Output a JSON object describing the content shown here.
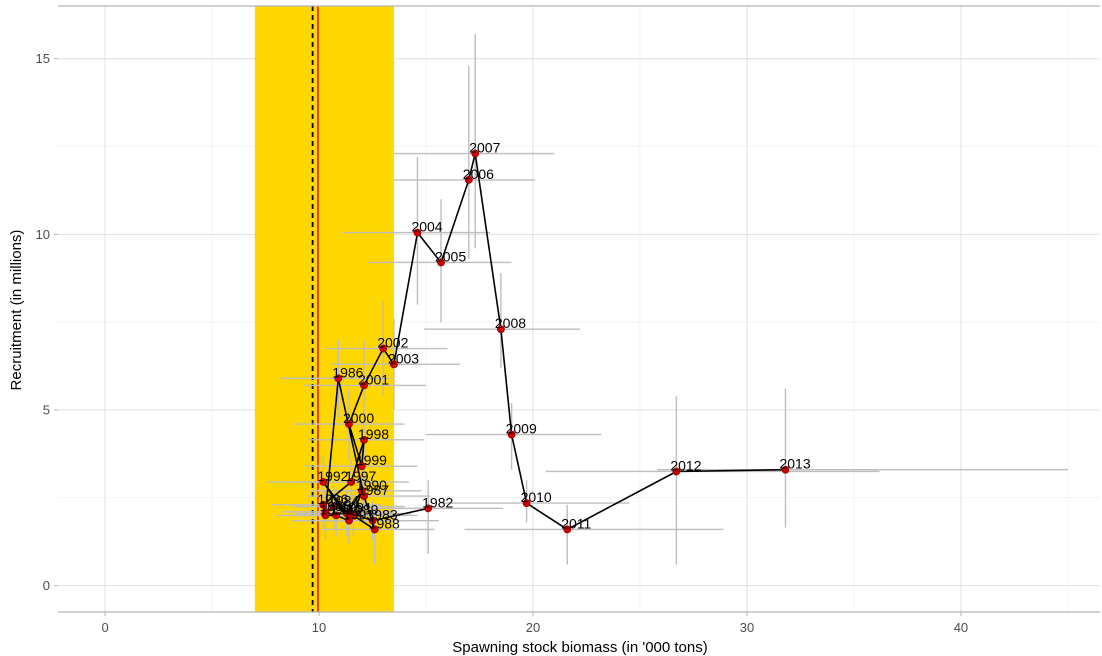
{
  "chart_data": {
    "type": "scatter",
    "xlabel": "Spawning stock biomass (in '000 tons)",
    "ylabel": "Recruitment (in millions)",
    "xlim": [
      -2.2,
      46.5
    ],
    "ylim": [
      -0.75,
      16.5
    ],
    "xticks": [
      0,
      10,
      20,
      30,
      40
    ],
    "xticklabels": [
      "0",
      "10",
      "20",
      "30",
      "40"
    ],
    "yticks": [
      0,
      5,
      10,
      15
    ],
    "yticklabels": [
      "0",
      "5",
      "10",
      "15"
    ],
    "grid": true,
    "legend": "none",
    "colors": {
      "band": "#FFD700",
      "point": "#CC0000",
      "line": "#000000",
      "errorbar": "#BEBEBE",
      "grid": "#E0E0E0",
      "ref_solid": "#E41A1C",
      "ref_dashed": "#000000"
    },
    "band": [
      7.0,
      13.5
    ],
    "ref_dashed_x": 9.7,
    "ref_solid_x": 9.95,
    "points": [
      {
        "year": "1982",
        "x": 15.1,
        "y": 2.2,
        "xerr": [
          11.6,
          18.6
        ],
        "yerr": [
          0.9,
          3.0
        ]
      },
      {
        "year": "1983",
        "x": 12.5,
        "y": 1.85,
        "xerr": [
          10.0,
          15.6
        ],
        "yerr": [
          1.3,
          2.4
        ]
      },
      {
        "year": "1984",
        "x": 10.7,
        "y": 2.25,
        "xerr": [
          8.8,
          14.0
        ],
        "yerr": [
          1.6,
          2.8
        ]
      },
      {
        "year": "1985",
        "x": 10.3,
        "y": 2.1,
        "xerr": [
          8.3,
          13.5
        ],
        "yerr": [
          1.5,
          2.7
        ]
      },
      {
        "year": "1986",
        "x": 10.9,
        "y": 5.9,
        "xerr": [
          8.2,
          13.4
        ],
        "yerr": [
          4.8,
          7.0
        ]
      },
      {
        "year": "1987",
        "x": 12.1,
        "y": 2.55,
        "xerr": [
          9.5,
          15.2
        ],
        "yerr": [
          1.9,
          3.2
        ]
      },
      {
        "year": "1988",
        "x": 12.6,
        "y": 1.6,
        "xerr": [
          10.1,
          15.4
        ],
        "yerr": [
          0.6,
          2.3
        ]
      },
      {
        "year": "1989",
        "x": 11.6,
        "y": 2.0,
        "xerr": [
          9.0,
          14.6
        ],
        "yerr": [
          1.4,
          2.6
        ]
      },
      {
        "year": "1990",
        "x": 12.0,
        "y": 2.7,
        "xerr": [
          9.6,
          14.8
        ],
        "yerr": [
          2.1,
          3.4
        ]
      },
      {
        "year": "1991",
        "x": 11.3,
        "y": 2.05,
        "xerr": [
          8.9,
          14.3
        ],
        "yerr": [
          1.4,
          2.7
        ]
      },
      {
        "year": "1992",
        "x": 10.2,
        "y": 2.95,
        "xerr": [
          7.6,
          12.8
        ],
        "yerr": [
          2.2,
          3.7
        ]
      },
      {
        "year": "1993",
        "x": 11.4,
        "y": 1.85,
        "xerr": [
          8.7,
          14.1
        ],
        "yerr": [
          1.2,
          2.5
        ]
      },
      {
        "year": "1994",
        "x": 10.8,
        "y": 2.0,
        "xerr": [
          8.4,
          13.6
        ],
        "yerr": [
          1.4,
          2.6
        ]
      },
      {
        "year": "1995",
        "x": 10.3,
        "y": 2.0,
        "xerr": [
          8.0,
          13.0
        ],
        "yerr": [
          1.3,
          2.6
        ]
      },
      {
        "year": "1996",
        "x": 10.2,
        "y": 2.3,
        "xerr": [
          7.8,
          12.9
        ],
        "yerr": [
          1.6,
          3.0
        ]
      },
      {
        "year": "1997",
        "x": 11.5,
        "y": 2.95,
        "xerr": [
          8.9,
          14.2
        ],
        "yerr": [
          2.3,
          3.6
        ]
      },
      {
        "year": "1998",
        "x": 12.1,
        "y": 4.15,
        "xerr": [
          9.5,
          14.9
        ],
        "yerr": [
          3.2,
          5.1
        ]
      },
      {
        "year": "1999",
        "x": 12.0,
        "y": 3.4,
        "xerr": [
          9.4,
          14.6
        ],
        "yerr": [
          2.6,
          4.2
        ]
      },
      {
        "year": "2000",
        "x": 11.4,
        "y": 4.6,
        "xerr": [
          8.8,
          14.0
        ],
        "yerr": [
          3.6,
          5.6
        ]
      },
      {
        "year": "2001",
        "x": 12.1,
        "y": 5.7,
        "xerr": [
          9.3,
          15.0
        ],
        "yerr": [
          4.4,
          7.0
        ]
      },
      {
        "year": "2002",
        "x": 13.0,
        "y": 6.75,
        "xerr": [
          10.3,
          16.0
        ],
        "yerr": [
          5.4,
          8.1
        ]
      },
      {
        "year": "2003",
        "x": 13.5,
        "y": 6.3,
        "xerr": [
          10.6,
          16.6
        ],
        "yerr": [
          5.0,
          7.6
        ]
      },
      {
        "year": "2004",
        "x": 14.6,
        "y": 10.05,
        "xerr": [
          11.1,
          18.0
        ],
        "yerr": [
          8.0,
          12.2
        ]
      },
      {
        "year": "2005",
        "x": 15.7,
        "y": 9.2,
        "xerr": [
          12.3,
          19.0
        ],
        "yerr": [
          7.5,
          11.0
        ]
      },
      {
        "year": "2006",
        "x": 17.0,
        "y": 11.55,
        "xerr": [
          13.5,
          20.1
        ],
        "yerr": [
          9.3,
          14.8
        ]
      },
      {
        "year": "2007",
        "x": 17.3,
        "y": 12.3,
        "xerr": [
          13.5,
          21.0
        ],
        "yerr": [
          9.6,
          15.7
        ]
      },
      {
        "year": "2008",
        "x": 18.5,
        "y": 7.3,
        "xerr": [
          14.9,
          22.2
        ],
        "yerr": [
          6.2,
          8.9
        ]
      },
      {
        "year": "2009",
        "x": 19.0,
        "y": 4.3,
        "xerr": [
          15.0,
          23.2
        ],
        "yerr": [
          3.3,
          5.2
        ]
      },
      {
        "year": "2010",
        "x": 19.7,
        "y": 2.35,
        "xerr": [
          15.7,
          24.5
        ],
        "yerr": [
          1.8,
          3.0
        ]
      },
      {
        "year": "2011",
        "x": 21.6,
        "y": 1.6,
        "xerr": [
          16.8,
          28.9
        ],
        "yerr": [
          0.6,
          2.3
        ]
      },
      {
        "year": "2012",
        "x": 26.7,
        "y": 3.25,
        "xerr": [
          20.6,
          36.2
        ],
        "yerr": [
          0.6,
          5.4
        ]
      },
      {
        "year": "2013",
        "x": 31.8,
        "y": 3.3,
        "xerr": [
          25.8,
          45.0
        ],
        "yerr": [
          1.65,
          5.6
        ]
      }
    ]
  }
}
